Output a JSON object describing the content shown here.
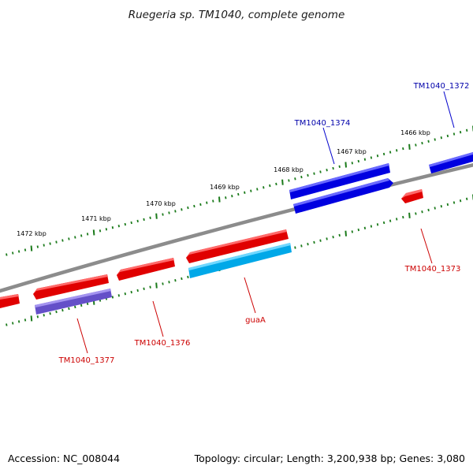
{
  "title": "Ruegeria sp. TM1040, complete genome",
  "footer": {
    "accession": "Accession: NC_008044",
    "summary": "Topology: circular; Length: 3,200,938 bp; Genes: 3,080"
  },
  "colors": {
    "backbone": "#808080",
    "tick": "#1a7a1a",
    "forward_gene": "#0000dd",
    "reverse_gene": "#e00000",
    "cds_light": "#00b0e8",
    "cds_purple": "#6650c8",
    "forward_label": "#0000aa",
    "reverse_label": "#cc0000"
  },
  "tick_labels": [
    "1466 kbp",
    "1467 kbp",
    "1468 kbp",
    "1469 kbp",
    "1470 kbp",
    "1471 kbp",
    "1472 kbp"
  ],
  "gene_labels": [
    {
      "name": "TM1040_1372",
      "strand": "forward"
    },
    {
      "name": "TM1040_1374",
      "strand": "forward"
    },
    {
      "name": "TM1040_1373",
      "strand": "reverse"
    },
    {
      "name": "guaA",
      "strand": "reverse"
    },
    {
      "name": "TM1040_1376",
      "strand": "reverse"
    },
    {
      "name": "TM1040_1377",
      "strand": "reverse"
    }
  ]
}
